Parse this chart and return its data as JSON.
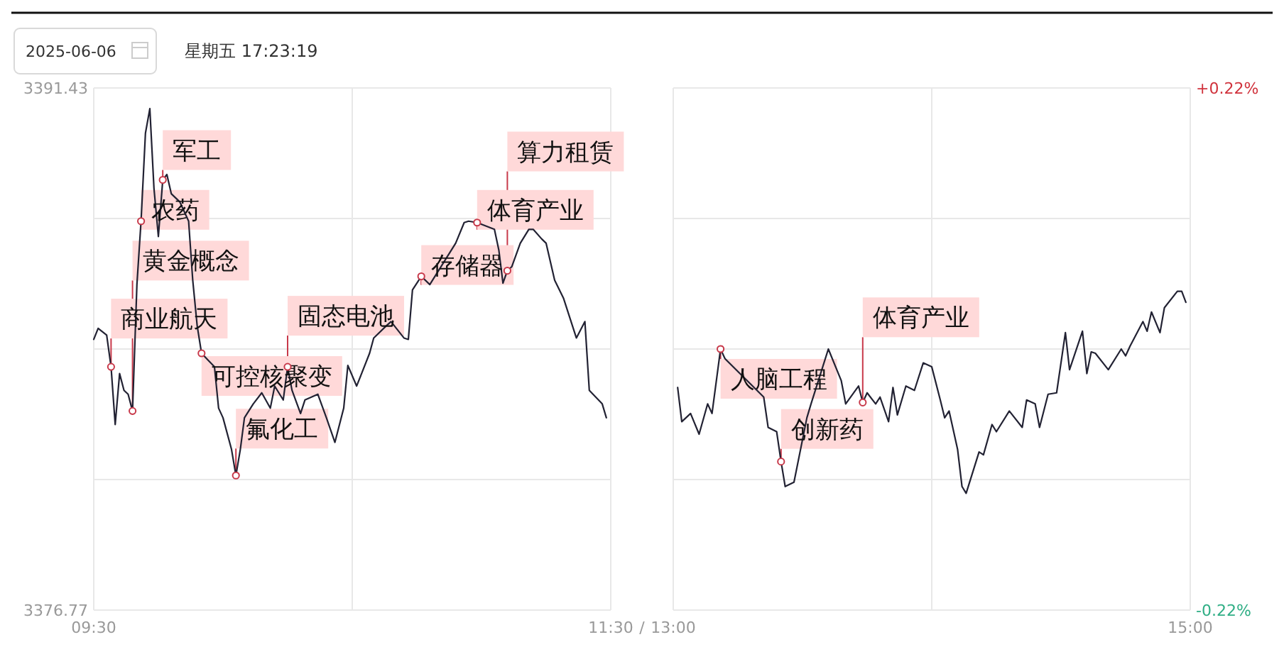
{
  "chart_data": [
    {
      "type": "line",
      "title": "2025-06-06",
      "subtitle": "星期五 17:23:19",
      "x": [
        9.5,
        9.517,
        9.55,
        9.567,
        9.583,
        9.6,
        9.617,
        9.633,
        9.65,
        9.667,
        9.683,
        9.7,
        9.717,
        9.733,
        9.75,
        9.767,
        9.783,
        9.8,
        9.833,
        9.867,
        9.883,
        9.9,
        9.917,
        9.967,
        9.983,
        10,
        10.033,
        10.05,
        10.067,
        10.083,
        10.117,
        10.15,
        10.183,
        10.2,
        10.233,
        10.25,
        10.267,
        10.3,
        10.317,
        10.367,
        10.4,
        10.433,
        10.467,
        10.483,
        10.517,
        10.567,
        10.583,
        10.633,
        10.65,
        10.7,
        10.717,
        10.733,
        10.767,
        10.8,
        10.9,
        10.933,
        10.95,
        10.983,
        11.05,
        11.067,
        11.083,
        11.1,
        11.117,
        11.15,
        11.183,
        11.2,
        11.233,
        11.25,
        11.283,
        11.317,
        11.367,
        11.4,
        11.417,
        11.467,
        11.483
      ],
      "series": [
        {
          "color": "#222233",
          "values": [
            3384.37,
            3384.68,
            3384.49,
            3383.6,
            3381.98,
            3383.41,
            3382.94,
            3382.83,
            3382.36,
            3385.91,
            3387.69,
            3390.16,
            3390.85,
            3388.61,
            3387.26,
            3388.85,
            3389.0,
            3388.46,
            3388.23,
            3387.69,
            3386.03,
            3384.76,
            3383.98,
            3383.6,
            3382.44,
            3382.17,
            3381.28,
            3380.55,
            3381.28,
            3382.17,
            3382.56,
            3382.87,
            3382.44,
            3383.06,
            3382.67,
            3383.6,
            3382.94,
            3382.29,
            3382.67,
            3382.83,
            3382.17,
            3381.48,
            3382.44,
            3383.64,
            3383.06,
            3383.98,
            3384.41,
            3384.76,
            3384.87,
            3384.41,
            3384.37,
            3385.76,
            3386.14,
            3385.91,
            3387.07,
            3387.65,
            3387.69,
            3387.65,
            3387.46,
            3386.88,
            3385.95,
            3386.3,
            3386.41,
            3387.07,
            3387.46,
            3387.46,
            3387.19,
            3387.07,
            3386.03,
            3385.53,
            3384.41,
            3384.87,
            3382.94,
            3382.56,
            3382.17
          ]
        }
      ],
      "xlim": [
        9.5,
        11.5
      ],
      "xticks": [
        {
          "value": 9.5,
          "label": "09:30"
        },
        {
          "value": 10.5,
          "label": null
        },
        {
          "value": 11.5,
          "label": "11:30"
        }
      ],
      "ylim": [
        3376.77,
        3391.43
      ],
      "yticks": [
        3376.77,
        {
          "value": 3380.435,
          "label": null
        },
        {
          "value": 3384.1,
          "label": null
        },
        {
          "value": 3387.765,
          "label": null
        },
        3391.43
      ],
      "grid": true,
      "annotations": [
        {
          "text": "商业航天",
          "x": 9.567,
          "y": 3383.6
        },
        {
          "text": "黄金概念",
          "x": 9.65,
          "y": 3382.36
        },
        {
          "text": "农药",
          "x": 9.683,
          "y": 3387.69
        },
        {
          "text": "军工",
          "x": 9.767,
          "y": 3388.85
        },
        {
          "text": "可控核聚变",
          "x": 9.917,
          "y": 3383.98
        },
        {
          "text": "氟化工",
          "x": 10.05,
          "y": 3380.55
        },
        {
          "text": "固态电池",
          "x": 10.25,
          "y": 3383.6
        },
        {
          "text": "存储器",
          "x": 10.767,
          "y": 3386.14
        },
        {
          "text": "体育产业",
          "x": 10.983,
          "y": 3387.65
        },
        {
          "text": "算力租赁",
          "x": 11.1,
          "y": 3386.3
        }
      ]
    },
    {
      "type": "line",
      "x": [
        13.017,
        13.033,
        13.067,
        13.1,
        13.133,
        13.15,
        13.183,
        13.2,
        13.35,
        13.367,
        13.4,
        13.417,
        13.433,
        13.467,
        13.517,
        13.533,
        13.6,
        13.65,
        13.667,
        13.717,
        13.733,
        13.75,
        13.783,
        13.8,
        13.833,
        13.85,
        13.867,
        13.9,
        13.933,
        13.967,
        14,
        14.033,
        14.05,
        14.067,
        14.1,
        14.117,
        14.133,
        14.183,
        14.2,
        14.233,
        14.25,
        14.3,
        14.35,
        14.367,
        14.4,
        14.417,
        14.45,
        14.483,
        14.517,
        14.533,
        14.583,
        14.6,
        14.617,
        14.633,
        14.683,
        14.733,
        14.75,
        14.767,
        14.817,
        14.833,
        14.85,
        14.883,
        14.9,
        14.95,
        14.967,
        14.983
      ],
      "series": [
        {
          "color": "#222233",
          "values": [
            3383.02,
            3382.06,
            3382.29,
            3381.71,
            3382.56,
            3382.29,
            3384.1,
            3383.83,
            3382.75,
            3381.9,
            3381.78,
            3380.94,
            3380.24,
            3380.36,
            3382.17,
            3382.56,
            3384.1,
            3383.21,
            3382.56,
            3383.06,
            3382.6,
            3382.87,
            3382.56,
            3382.75,
            3382.06,
            3383.02,
            3382.25,
            3383.06,
            3382.94,
            3383.71,
            3383.6,
            3382.67,
            3382.17,
            3382.36,
            3381.28,
            3380.24,
            3380.05,
            3381.21,
            3381.13,
            3381.98,
            3381.78,
            3382.36,
            3381.9,
            3382.67,
            3382.56,
            3381.9,
            3382.83,
            3382.87,
            3384.56,
            3383.52,
            3384.6,
            3383.41,
            3384.02,
            3383.98,
            3383.52,
            3384.1,
            3383.91,
            3384.18,
            3384.87,
            3384.6,
            3385.14,
            3384.56,
            3385.26,
            3385.72,
            3385.72,
            3385.41
          ]
        }
      ],
      "xlim": [
        13,
        15
      ],
      "xticks": [
        {
          "value": 13,
          "label": "13:00"
        },
        {
          "value": 14,
          "label": null
        },
        {
          "value": 15,
          "label": "15:00"
        }
      ],
      "ylim": [
        3376.77,
        3391.43
      ],
      "yticks": [
        {
          "value": 3376.77,
          "label": null
        },
        {
          "value": 3380.435,
          "label": null
        },
        {
          "value": 3384.1,
          "label": null
        },
        {
          "value": 3387.765,
          "label": null
        },
        {
          "value": 3391.43,
          "label": null
        }
      ],
      "tick_labels": "x",
      "y2lim": [
        -0.22,
        0.22
      ],
      "y2ticks": [
        {
          "value": -0.22,
          "label": "-0.22%"
        },
        {
          "value": 0.22,
          "label": "+0.22%"
        }
      ],
      "grid": true,
      "annotations": [
        "/",
        {
          "text": "人脑工程",
          "x": 13.183,
          "y": 3384.1
        },
        {
          "text": "创新药",
          "x": 13.417,
          "y": 3380.94
        },
        {
          "text": "体育产业",
          "x": 13.733,
          "y": 3382.6
        }
      ]
    }
  ]
}
